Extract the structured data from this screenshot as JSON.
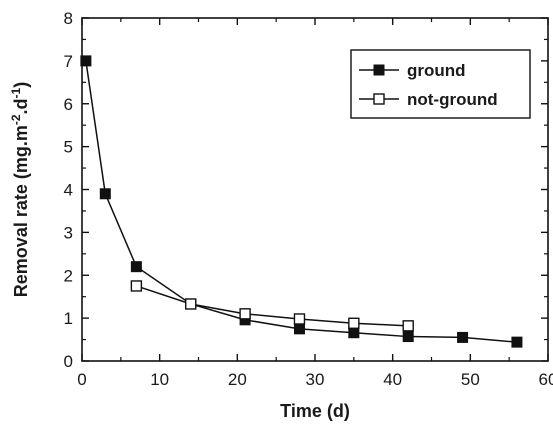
{
  "chart_data": {
    "type": "line",
    "xlabel": "Time (d)",
    "ylabel": {
      "parts": [
        "Removal rate (mg.m",
        "-2",
        ".d",
        "-1",
        ")"
      ]
    },
    "xlim": [
      0,
      60
    ],
    "ylim": [
      0,
      8
    ],
    "xticks": [
      0,
      10,
      20,
      30,
      40,
      50,
      60
    ],
    "yticks": [
      0,
      1,
      2,
      3,
      4,
      5,
      6,
      7,
      8
    ],
    "grid": false,
    "legend_position": "top-right",
    "series": [
      {
        "name": "ground",
        "marker": "filled-square",
        "color": "#111111",
        "x": [
          0.5,
          3,
          7,
          14,
          21,
          28,
          35,
          42,
          49,
          56
        ],
        "y": [
          7.0,
          3.9,
          2.2,
          1.33,
          0.96,
          0.75,
          0.66,
          0.57,
          0.55,
          0.44
        ]
      },
      {
        "name": "not-ground",
        "marker": "open-square",
        "color": "#111111",
        "x": [
          7,
          14,
          21,
          28,
          35,
          42
        ],
        "y": [
          1.75,
          1.33,
          1.1,
          0.98,
          0.88,
          0.82
        ]
      }
    ]
  }
}
